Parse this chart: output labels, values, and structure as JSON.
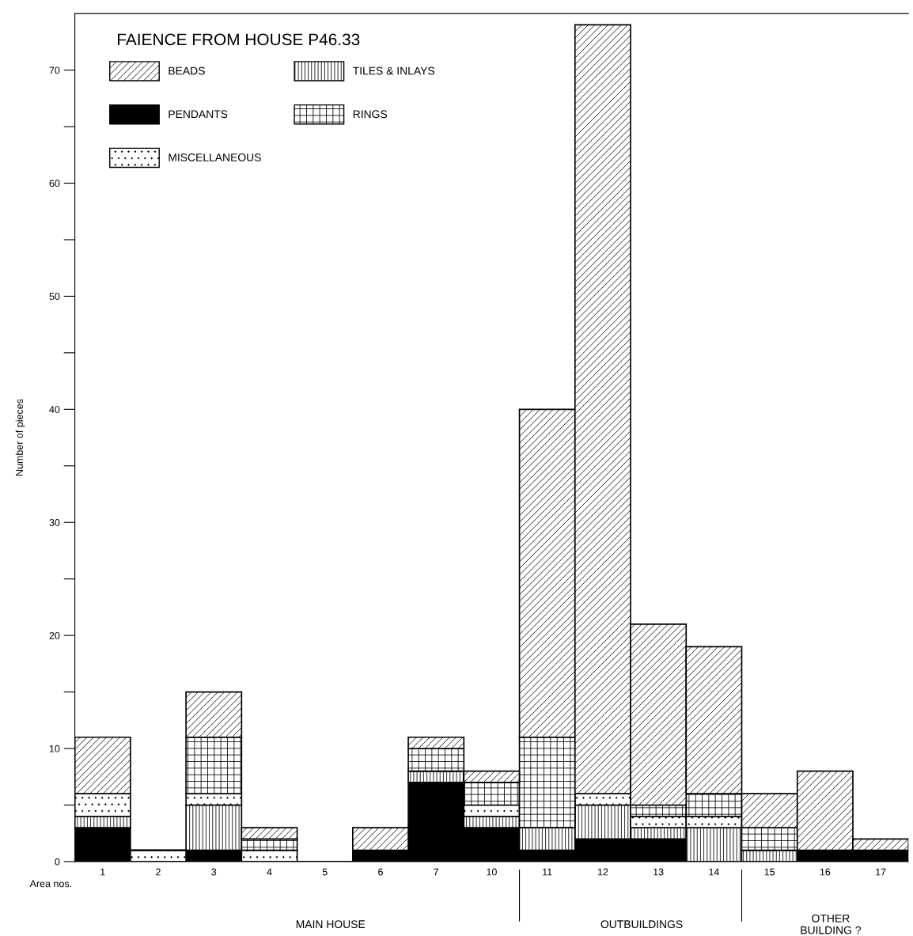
{
  "chart_data": {
    "type": "bar",
    "stacked": true,
    "title": "FAIENCE FROM HOUSE P46.33",
    "ylabel": "Number of pieces",
    "categories": [
      "1",
      "2",
      "3",
      "4",
      "5",
      "6",
      "7",
      "10",
      "11",
      "12",
      "13",
      "14",
      "15",
      "16",
      "17"
    ],
    "series": [
      {
        "name": "PENDANTS",
        "color": "#000000",
        "values": [
          3,
          0,
          1,
          0,
          0,
          1,
          7,
          3,
          1,
          2,
          2,
          0,
          0,
          1,
          1
        ]
      },
      {
        "name": "TILES & INLAYS",
        "color": "#000000",
        "values": [
          1,
          0,
          4,
          0,
          0,
          0,
          1,
          1,
          2,
          3,
          1,
          3,
          1,
          0,
          0
        ]
      },
      {
        "name": "MISCELLANEOUS",
        "color": "#000000",
        "values": [
          2,
          1,
          1,
          1,
          0,
          0,
          0,
          1,
          0,
          1,
          1,
          1,
          0,
          0,
          0
        ]
      },
      {
        "name": "RINGS",
        "color": "#000000",
        "values": [
          0,
          0,
          5,
          1,
          0,
          0,
          2,
          2,
          8,
          0,
          1,
          2,
          2,
          0,
          0
        ]
      },
      {
        "name": "BEADS",
        "color": "#000000",
        "values": [
          5,
          0,
          4,
          1,
          0,
          2,
          1,
          1,
          29,
          68,
          16,
          13,
          3,
          7,
          1
        ]
      }
    ],
    "ylim": [
      0,
      75
    ],
    "yticks": [
      0,
      {
        "value": 5,
        "label": null
      },
      10,
      {
        "value": 15,
        "label": null
      },
      20,
      {
        "value": 25,
        "label": null
      },
      30,
      {
        "value": 35,
        "label": null
      },
      40,
      {
        "value": 45,
        "label": null
      },
      50,
      {
        "value": 55,
        "label": null
      },
      60,
      {
        "value": 65,
        "label": null
      },
      70
    ],
    "grid": false,
    "legend": "top left",
    "annotations": [
      "Area nos.",
      "MAIN HOUSE",
      "OUTBUILDINGS",
      "OTHER\nBUILDING ?"
    ]
  }
}
